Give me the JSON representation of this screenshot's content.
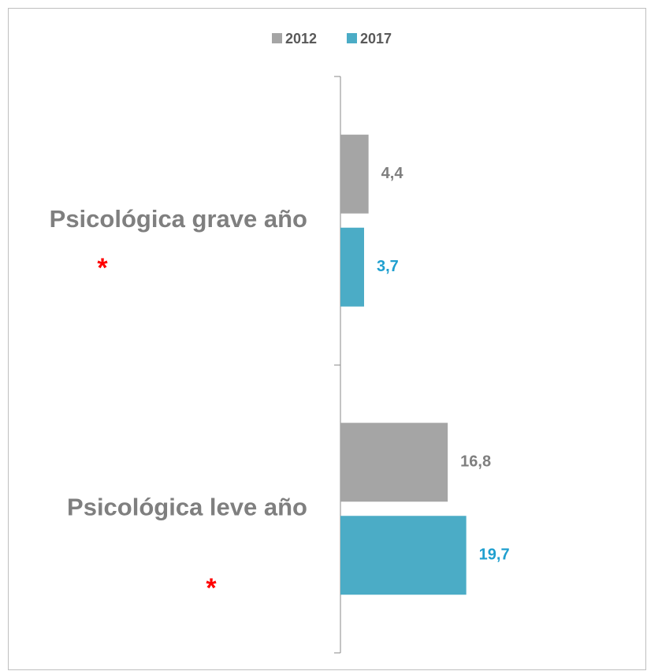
{
  "chart_data": {
    "type": "bar",
    "orientation": "horizontal",
    "categories": [
      "Psicológica grave año",
      "Psicológica leve año"
    ],
    "series": [
      {
        "name": "2012",
        "color": "#a5a5a5",
        "label_color": "#7f7f7f",
        "values": [
          4.4,
          16.8
        ],
        "value_labels": [
          "4,4",
          "16,8"
        ]
      },
      {
        "name": "2017",
        "color": "#4bacc6",
        "label_color": "#1f9fcf",
        "values": [
          3.7,
          19.7
        ],
        "value_labels": [
          "3,7",
          "19,7"
        ]
      }
    ],
    "annotations": [
      "*",
      "*"
    ],
    "xlim": [
      0,
      48
    ],
    "legend": "top"
  }
}
